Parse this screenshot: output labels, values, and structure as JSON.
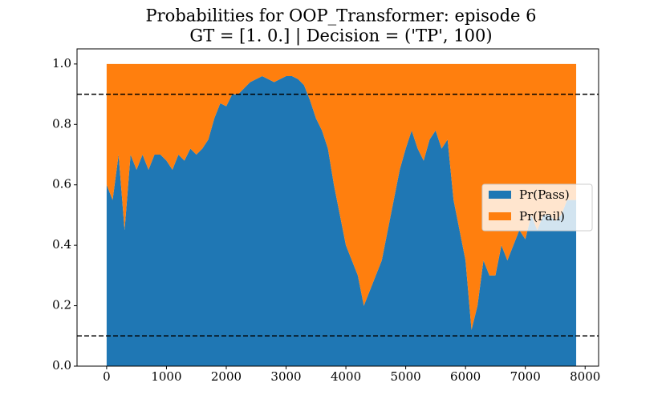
{
  "chart_data": {
    "type": "stacked_area",
    "title": "Probabilities for OOP_Transformer: episode 6",
    "subtitle": "GT = [1. 0.] | Decision = ('TP', 100)",
    "x": [
      0,
      100,
      200,
      300,
      400,
      500,
      600,
      700,
      800,
      900,
      1000,
      1100,
      1200,
      1300,
      1400,
      1500,
      1600,
      1700,
      1800,
      1900,
      2000,
      2100,
      2200,
      2300,
      2400,
      2500,
      2600,
      2700,
      2800,
      2900,
      3000,
      3100,
      3200,
      3300,
      3400,
      3500,
      3600,
      3700,
      3800,
      3900,
      4000,
      4100,
      4200,
      4300,
      4400,
      4500,
      4600,
      4700,
      4800,
      4900,
      5000,
      5100,
      5200,
      5300,
      5400,
      5500,
      5600,
      5700,
      5800,
      5900,
      6000,
      6100,
      6200,
      6300,
      6400,
      6500,
      6600,
      6700,
      6800,
      6900,
      7000,
      7100,
      7200,
      7300,
      7400,
      7500,
      7600,
      7700,
      7800,
      7850
    ],
    "series": [
      {
        "name": "Pr(Pass)",
        "color": "#1f77b4",
        "values": [
          0.6,
          0.55,
          0.7,
          0.45,
          0.7,
          0.65,
          0.7,
          0.65,
          0.7,
          0.7,
          0.68,
          0.65,
          0.7,
          0.68,
          0.72,
          0.7,
          0.72,
          0.75,
          0.82,
          0.87,
          0.86,
          0.9,
          0.9,
          0.92,
          0.94,
          0.95,
          0.96,
          0.95,
          0.94,
          0.95,
          0.96,
          0.96,
          0.95,
          0.93,
          0.88,
          0.82,
          0.78,
          0.72,
          0.6,
          0.5,
          0.4,
          0.35,
          0.3,
          0.2,
          0.25,
          0.3,
          0.35,
          0.45,
          0.55,
          0.65,
          0.72,
          0.78,
          0.72,
          0.68,
          0.75,
          0.78,
          0.72,
          0.75,
          0.55,
          0.45,
          0.35,
          0.12,
          0.2,
          0.35,
          0.3,
          0.3,
          0.4,
          0.35,
          0.4,
          0.45,
          0.42,
          0.5,
          0.45,
          0.5,
          0.5,
          0.48,
          0.5,
          0.55,
          0.55,
          0.55
        ]
      },
      {
        "name": "Pr(Fail)",
        "color": "#ff7f0e",
        "values": [
          0.4,
          0.45,
          0.3,
          0.55,
          0.3,
          0.35,
          0.3,
          0.35,
          0.3,
          0.3,
          0.32,
          0.35,
          0.3,
          0.32,
          0.28,
          0.3,
          0.28,
          0.25,
          0.18,
          0.13,
          0.14,
          0.1,
          0.1,
          0.08,
          0.06,
          0.05,
          0.04,
          0.05,
          0.06,
          0.05,
          0.04,
          0.04,
          0.05,
          0.07,
          0.12,
          0.18,
          0.22,
          0.28,
          0.4,
          0.5,
          0.6,
          0.65,
          0.7,
          0.8,
          0.75,
          0.7,
          0.65,
          0.55,
          0.45,
          0.35,
          0.28,
          0.22,
          0.28,
          0.32,
          0.25,
          0.22,
          0.28,
          0.25,
          0.45,
          0.55,
          0.65,
          0.88,
          0.8,
          0.65,
          0.7,
          0.7,
          0.6,
          0.65,
          0.6,
          0.55,
          0.58,
          0.5,
          0.55,
          0.5,
          0.5,
          0.52,
          0.5,
          0.45,
          0.45,
          0.45
        ]
      }
    ],
    "hlines": [
      0.1,
      0.9
    ],
    "xlim": [
      -495,
      8225
    ],
    "ylim": [
      0,
      1.05
    ],
    "xticks": [
      0,
      1000,
      2000,
      3000,
      4000,
      5000,
      6000,
      7000,
      8000
    ],
    "yticks": [
      {
        "value": 0,
        "label": "0.0"
      },
      0.2,
      0.4,
      0.6,
      0.8,
      {
        "value": 1,
        "label": "1.0"
      }
    ],
    "legend": "center right"
  }
}
